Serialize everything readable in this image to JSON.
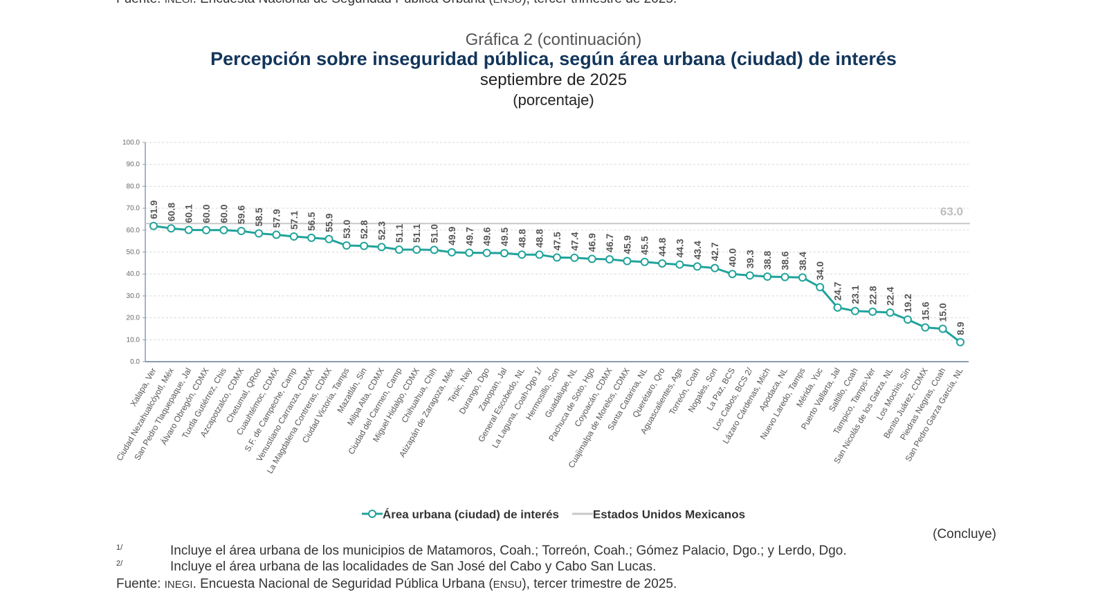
{
  "header": {
    "graph_number": "Gráfica 2 (continuación)",
    "title": "Percepción sobre inseguridad pública, según área urbana (ciudad) de interés",
    "subtitle": "septiembre de 2025",
    "unit": "(porcentaje)"
  },
  "chart_data": {
    "type": "line",
    "title": "Percepción sobre inseguridad pública, según área urbana (ciudad) de interés",
    "ylim": [
      0,
      100
    ],
    "yticks": [
      "0.0",
      "10.0",
      "20.0",
      "30.0",
      "40.0",
      "50.0",
      "60.0",
      "70.0",
      "80.0",
      "90.0",
      "100.0"
    ],
    "grid": true,
    "legend_position": "bottom",
    "colors": {
      "series": "#1fa39a",
      "reference": "#c8c8c8",
      "axis": "#8a9bb0"
    },
    "categories": [
      "Xalapa, Ver",
      "Ciudad Nezahualcóyotl, Méx",
      "San Pedro Tlaquepaque, Jal",
      "Álvaro Obregón, CDMX",
      "Tuxtla Gutiérrez, Chis",
      "Azcapotzalco, CDMX",
      "Chetumal, QRoo",
      "Cuauhtémoc, CDMX",
      "S.F. de Campeche, Camp",
      "Venustiano Carranza, CDMX",
      "La Magdalena Contreras, CDMX",
      "Ciudad Victoria, Tamps",
      "Mazatlán, Sin",
      "Milpa Alta, CDMX",
      "Ciudad del Carmen, Camp",
      "Miguel Hidalgo, CDMX",
      "Chihuahua, Chih",
      "Atizapán de Zaragoza, Méx",
      "Tepic, Nay",
      "Durango, Dgo",
      "Zapopan, Jal",
      "General Escobedo, NL",
      "La Laguna, Coah-Dgo 1/",
      "Hermosillo, Son",
      "Guadalupe, NL",
      "Pachuca de Soto, Hgo",
      "Coyoacán, CDMX",
      "Cuajimalpa de Morelos, CDMX",
      "Santa Catarina, NL",
      "Querétaro, Qro",
      "Aguascalientes, Ags",
      "Torreón, Coah",
      "Nogales, Son",
      "La Paz, BCS",
      "Los Cabos, BCS 2/",
      "Lázaro Cárdenas, Mich",
      "Apodaca, NL",
      "Nuevo Laredo, Tamps",
      "Mérida, Yuc",
      "Puerto Vallarta, Jal",
      "Saltillo, Coah",
      "Tampico, Tamps-Ver",
      "San Nicolás de los Garza, NL",
      "Los Mochis, Sin",
      "Benito Juárez, CDMX",
      "Piedras Negras, Coah",
      "San Pedro Garza García, NL"
    ],
    "series": [
      {
        "name": "Área urbana (ciudad) de interés",
        "values": [
          61.9,
          60.8,
          60.1,
          60.0,
          60.0,
          59.6,
          58.5,
          57.9,
          57.1,
          56.5,
          55.9,
          53.0,
          52.8,
          52.3,
          51.1,
          51.1,
          51.0,
          49.9,
          49.7,
          49.6,
          49.5,
          48.8,
          48.8,
          47.5,
          47.4,
          46.9,
          46.7,
          45.9,
          45.5,
          44.8,
          44.3,
          43.4,
          42.7,
          40.0,
          39.3,
          38.8,
          38.6,
          38.4,
          34.0,
          24.7,
          23.1,
          22.8,
          22.4,
          19.2,
          15.6,
          15.0,
          8.9
        ]
      },
      {
        "name": "Estados Unidos Mexicanos",
        "value": 63.0,
        "label": "63.0"
      }
    ]
  },
  "legend": {
    "series_label": "Área urbana (ciudad) de interés",
    "reference_label": "Estados Unidos Mexicanos"
  },
  "concluye": "(Concluye)",
  "notes": [
    {
      "mark": "1/",
      "text": "Incluye el área urbana de los municipios de Matamoros, Coah.; Torreón, Coah.; Gómez Palacio, Dgo.; y Lerdo, Dgo."
    },
    {
      "mark": "2/",
      "text": "Incluye el área urbana de las localidades de San José del Cabo y Cabo San Lucas."
    }
  ],
  "source": {
    "prefix": "Fuente: ",
    "org": "INEGI",
    "text1": ". Encuesta Nacional de Seguridad Pública Urbana (",
    "abbr": "ENSU",
    "text2": "), tercer trimestre de 2025."
  }
}
